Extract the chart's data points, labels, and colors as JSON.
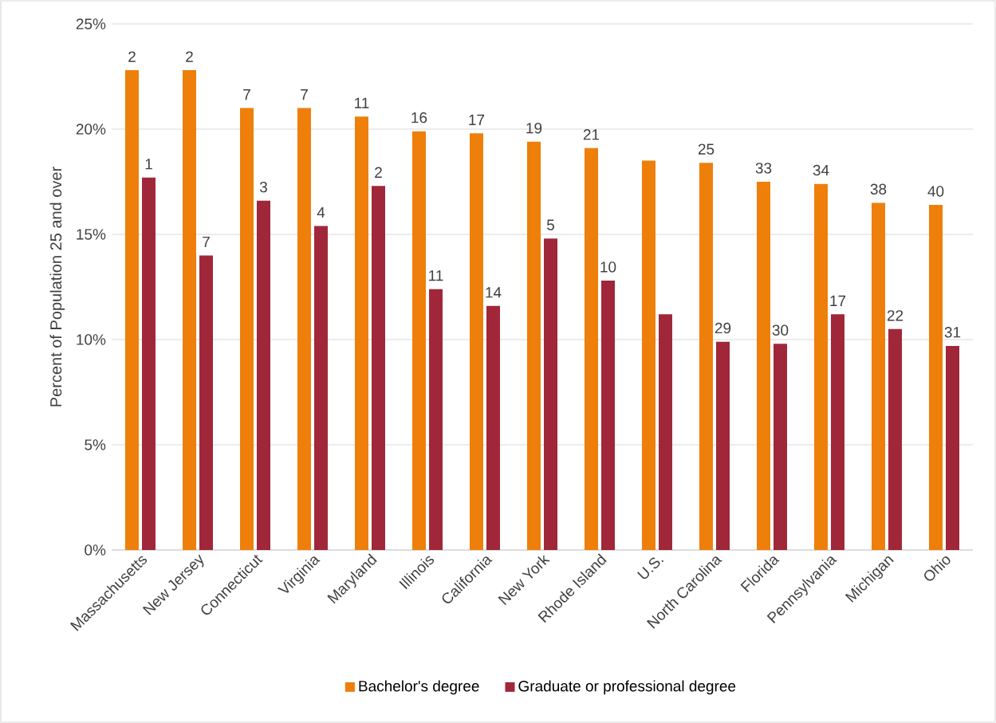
{
  "chart_data": {
    "type": "bar",
    "ylabel": "Percent of Population 25 and over",
    "categories": [
      "Massachusetts",
      "New Jersey",
      "Connecticut",
      "Virginia",
      "Maryland",
      "Illinois",
      "California",
      "New York",
      "Rhode Island",
      "U.S.",
      "North Carolina",
      "Florida",
      "Pennsylvania",
      "Michigan",
      "Ohio"
    ],
    "series": [
      {
        "name": "Bachelor's degree",
        "color": "#ee7f0b",
        "values": [
          22.8,
          22.8,
          21.0,
          21.0,
          20.6,
          19.9,
          19.8,
          19.4,
          19.1,
          18.5,
          18.4,
          17.5,
          17.4,
          16.5,
          16.4
        ]
      },
      {
        "name": "Graduate or professional degree",
        "color": "#a02739",
        "values": [
          17.7,
          14.0,
          16.6,
          15.4,
          17.3,
          12.4,
          11.6,
          14.8,
          12.8,
          11.2,
          9.9,
          9.8,
          11.2,
          10.5,
          9.7
        ]
      }
    ],
    "annotations": [
      {
        "text": "2",
        "x": "Massachusetts",
        "y": 22.8
      },
      {
        "text": "1",
        "x": "Massachusetts",
        "y": 17.7
      },
      {
        "text": "2",
        "x": "New Jersey",
        "y": 22.8
      },
      {
        "text": "7",
        "x": "New Jersey",
        "y": 14.0
      },
      {
        "text": "7",
        "x": "Connecticut",
        "y": 21.0
      },
      {
        "text": "3",
        "x": "Connecticut",
        "y": 16.6
      },
      {
        "text": "7",
        "x": "Virginia",
        "y": 21.0
      },
      {
        "text": "4",
        "x": "Virginia",
        "y": 15.4
      },
      {
        "text": "11",
        "x": "Maryland",
        "y": 20.6
      },
      {
        "text": "2",
        "x": "Maryland",
        "y": 17.3
      },
      {
        "text": "16",
        "x": "Illinois",
        "y": 19.9
      },
      {
        "text": "11",
        "x": "Illinois",
        "y": 12.4
      },
      {
        "text": "17",
        "x": "California",
        "y": 19.8
      },
      {
        "text": "14",
        "x": "California",
        "y": 11.6
      },
      {
        "text": "19",
        "x": "New York",
        "y": 19.4
      },
      {
        "text": "5",
        "x": "New York",
        "y": 14.8
      },
      {
        "text": "21",
        "x": "Rhode Island",
        "y": 19.1
      },
      {
        "text": "10",
        "x": "Rhode Island",
        "y": 12.8
      },
      {
        "text": "25",
        "x": "North Carolina",
        "y": 18.4
      },
      {
        "text": "29",
        "x": "North Carolina",
        "y": 9.9
      },
      {
        "text": "33",
        "x": "Florida",
        "y": 17.5
      },
      {
        "text": "30",
        "x": "Florida",
        "y": 9.8
      },
      {
        "text": "34",
        "x": "Pennsylvania",
        "y": 17.4
      },
      {
        "text": "17",
        "x": "Pennsylvania",
        "y": 11.2
      },
      {
        "text": "38",
        "x": "Michigan",
        "y": 16.5
      },
      {
        "text": "22",
        "x": "Michigan",
        "y": 10.5
      },
      {
        "text": "40",
        "x": "Ohio",
        "y": 16.4
      },
      {
        "text": "31",
        "x": "Ohio",
        "y": 9.7
      }
    ],
    "ylim": [
      0,
      25
    ],
    "yticks": [
      {
        "value": 0,
        "label": "0%"
      },
      {
        "value": 5,
        "label": "5%"
      },
      {
        "value": 10,
        "label": "10%"
      },
      {
        "value": 15,
        "label": "15%"
      },
      {
        "value": 20,
        "label": "20%"
      },
      {
        "value": 25,
        "label": "25%"
      }
    ],
    "grid": "y",
    "legend": "bottom"
  }
}
